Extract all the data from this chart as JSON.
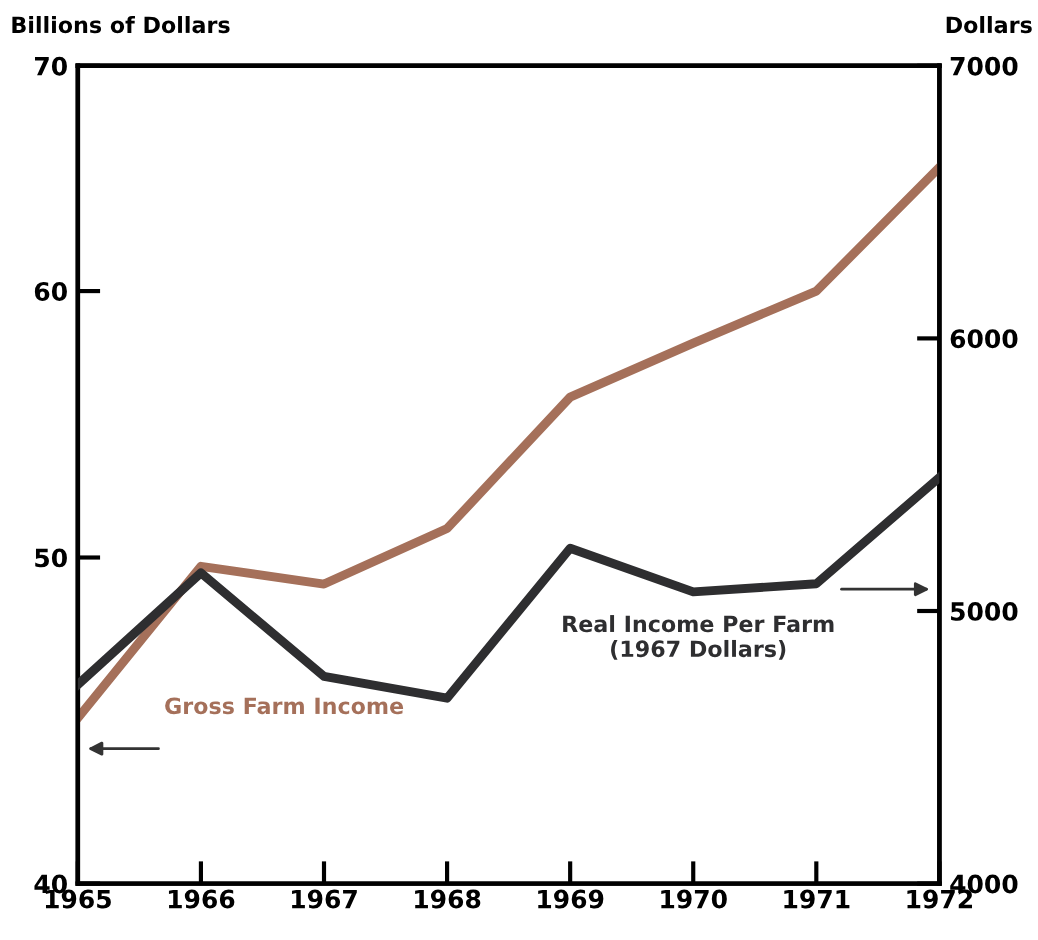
{
  "chart_data": {
    "type": "line",
    "ylabel": "Billions of Dollars",
    "y2label": "Dollars",
    "log": "y",
    "x": [
      1965,
      1966,
      1967,
      1968,
      1969,
      1970,
      1971,
      1972
    ],
    "xlim": [
      1965,
      1972
    ],
    "xticks": [
      1965,
      1966,
      1967,
      1968,
      1969,
      1970,
      1971,
      1972
    ],
    "ylim": [
      40,
      70
    ],
    "yticks": [
      40,
      50,
      60,
      70
    ],
    "y2lim": [
      4000,
      7000
    ],
    "y2ticks": [
      4000,
      5000,
      6000,
      7000
    ],
    "grid": false,
    "legend": false,
    "marker": "none",
    "line_style": "solid",
    "series": [
      {
        "name": "Gross Farm Income",
        "color": "#a5705a",
        "values": [
          44.8,
          49.7,
          49.1,
          51.0,
          55.8,
          57.9,
          60.0,
          65.3
        ]
      },
      {
        "name": "Real Income Per Farm\n(1967 Dollars)",
        "color": "#2e2e30",
        "axis": "y2",
        "values": [
          4730,
          5140,
          4760,
          4680,
          5230,
          5070,
          5100,
          5490
        ]
      }
    ]
  }
}
